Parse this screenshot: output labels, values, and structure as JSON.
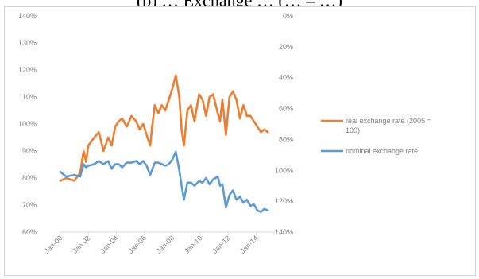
{
  "page": {
    "title_fragment": "(b) … Exchange … (… – …)"
  },
  "chart_data": {
    "type": "line",
    "x_tick_labels": [
      "Jan-00",
      "Jan-02",
      "Jan-04",
      "Jan-06",
      "Jan-08",
      "Jan-10",
      "Jan-12",
      "Jan-14"
    ],
    "y_left": {
      "range": [
        60,
        140
      ],
      "step": 10,
      "tick_labels": [
        "140%",
        "130%",
        "120%",
        "110%",
        "100%",
        "90%",
        "80%",
        "70%",
        "60%"
      ]
    },
    "y_right": {
      "range": [
        0,
        140
      ],
      "inverted": true,
      "tick_labels": [
        "0%",
        "20%",
        "40%",
        "60%",
        "80%",
        "100%",
        "120%",
        "140%"
      ]
    },
    "grid": false,
    "legend_position": "right",
    "series": [
      {
        "name": "real exchange rate (2005 = 100)",
        "legend_lines": [
          "real exchange rate  (2005 =",
          "100)"
        ],
        "axis": "left",
        "color": "#ed7d31",
        "x": [
          "2000-01",
          "2000-06",
          "2001-01",
          "2001-06",
          "2001-09",
          "2001-11",
          "2002-01",
          "2002-06",
          "2002-10",
          "2003-02",
          "2003-06",
          "2003-09",
          "2003-12",
          "2004-03",
          "2004-06",
          "2004-10",
          "2005-02",
          "2005-06",
          "2005-09",
          "2005-12",
          "2006-03",
          "2006-06",
          "2006-08",
          "2006-10",
          "2007-01",
          "2007-04",
          "2007-07",
          "2007-10",
          "2008-01",
          "2008-04",
          "2008-07",
          "2008-09",
          "2008-11",
          "2009-02",
          "2009-05",
          "2009-08",
          "2009-12",
          "2010-03",
          "2010-06",
          "2010-09",
          "2010-12",
          "2011-04",
          "2011-06",
          "2011-08",
          "2011-11",
          "2012-02",
          "2012-05",
          "2012-08",
          "2012-11",
          "2013-02",
          "2013-05",
          "2013-08",
          "2013-11",
          "2014-02",
          "2014-05",
          "2014-08",
          "2014-11"
        ],
        "y": [
          79,
          80,
          79,
          82,
          90,
          86,
          92,
          95,
          97,
          90,
          95,
          92,
          99,
          101,
          102,
          99,
          103,
          101,
          98,
          100,
          96,
          92,
          100,
          107,
          104,
          107,
          105,
          109,
          113,
          118,
          110,
          98,
          92,
          105,
          107,
          101,
          111,
          109,
          103,
          110,
          111,
          104,
          101,
          109,
          96,
          110,
          112,
          109,
          102,
          107,
          103,
          103,
          101,
          99,
          97,
          98,
          97
        ]
      },
      {
        "name": "nominal exchange rate",
        "legend_lines": [
          "nominal exchange rate"
        ],
        "axis": "right",
        "color": "#5b9bd5",
        "x": [
          "2000-01",
          "2000-06",
          "2001-01",
          "2001-06",
          "2001-09",
          "2001-11",
          "2002-01",
          "2002-06",
          "2002-10",
          "2003-02",
          "2003-06",
          "2003-09",
          "2003-12",
          "2004-03",
          "2004-06",
          "2004-10",
          "2005-02",
          "2005-06",
          "2005-09",
          "2005-12",
          "2006-03",
          "2006-06",
          "2006-08",
          "2006-10",
          "2007-01",
          "2007-04",
          "2007-07",
          "2007-10",
          "2008-01",
          "2008-04",
          "2008-07",
          "2008-09",
          "2008-11",
          "2009-02",
          "2009-05",
          "2009-08",
          "2009-12",
          "2010-03",
          "2010-06",
          "2010-09",
          "2010-12",
          "2011-04",
          "2011-06",
          "2011-08",
          "2011-11",
          "2012-02",
          "2012-05",
          "2012-08",
          "2012-11",
          "2013-02",
          "2013-05",
          "2013-08",
          "2013-11",
          "2014-02",
          "2014-05",
          "2014-08",
          "2014-11"
        ],
        "y": [
          101,
          104,
          103,
          104,
          96,
          98,
          97,
          96,
          94,
          96,
          94,
          99,
          96,
          96,
          98,
          95,
          95,
          94,
          96,
          94,
          97,
          103,
          99,
          95,
          95,
          96,
          97,
          96,
          93,
          88,
          100,
          110,
          119,
          108,
          108,
          110,
          107,
          108,
          105,
          109,
          106,
          104,
          110,
          109,
          124,
          116,
          113,
          119,
          117,
          121,
          119,
          123,
          122,
          126,
          127,
          125,
          126
        ]
      }
    ]
  }
}
